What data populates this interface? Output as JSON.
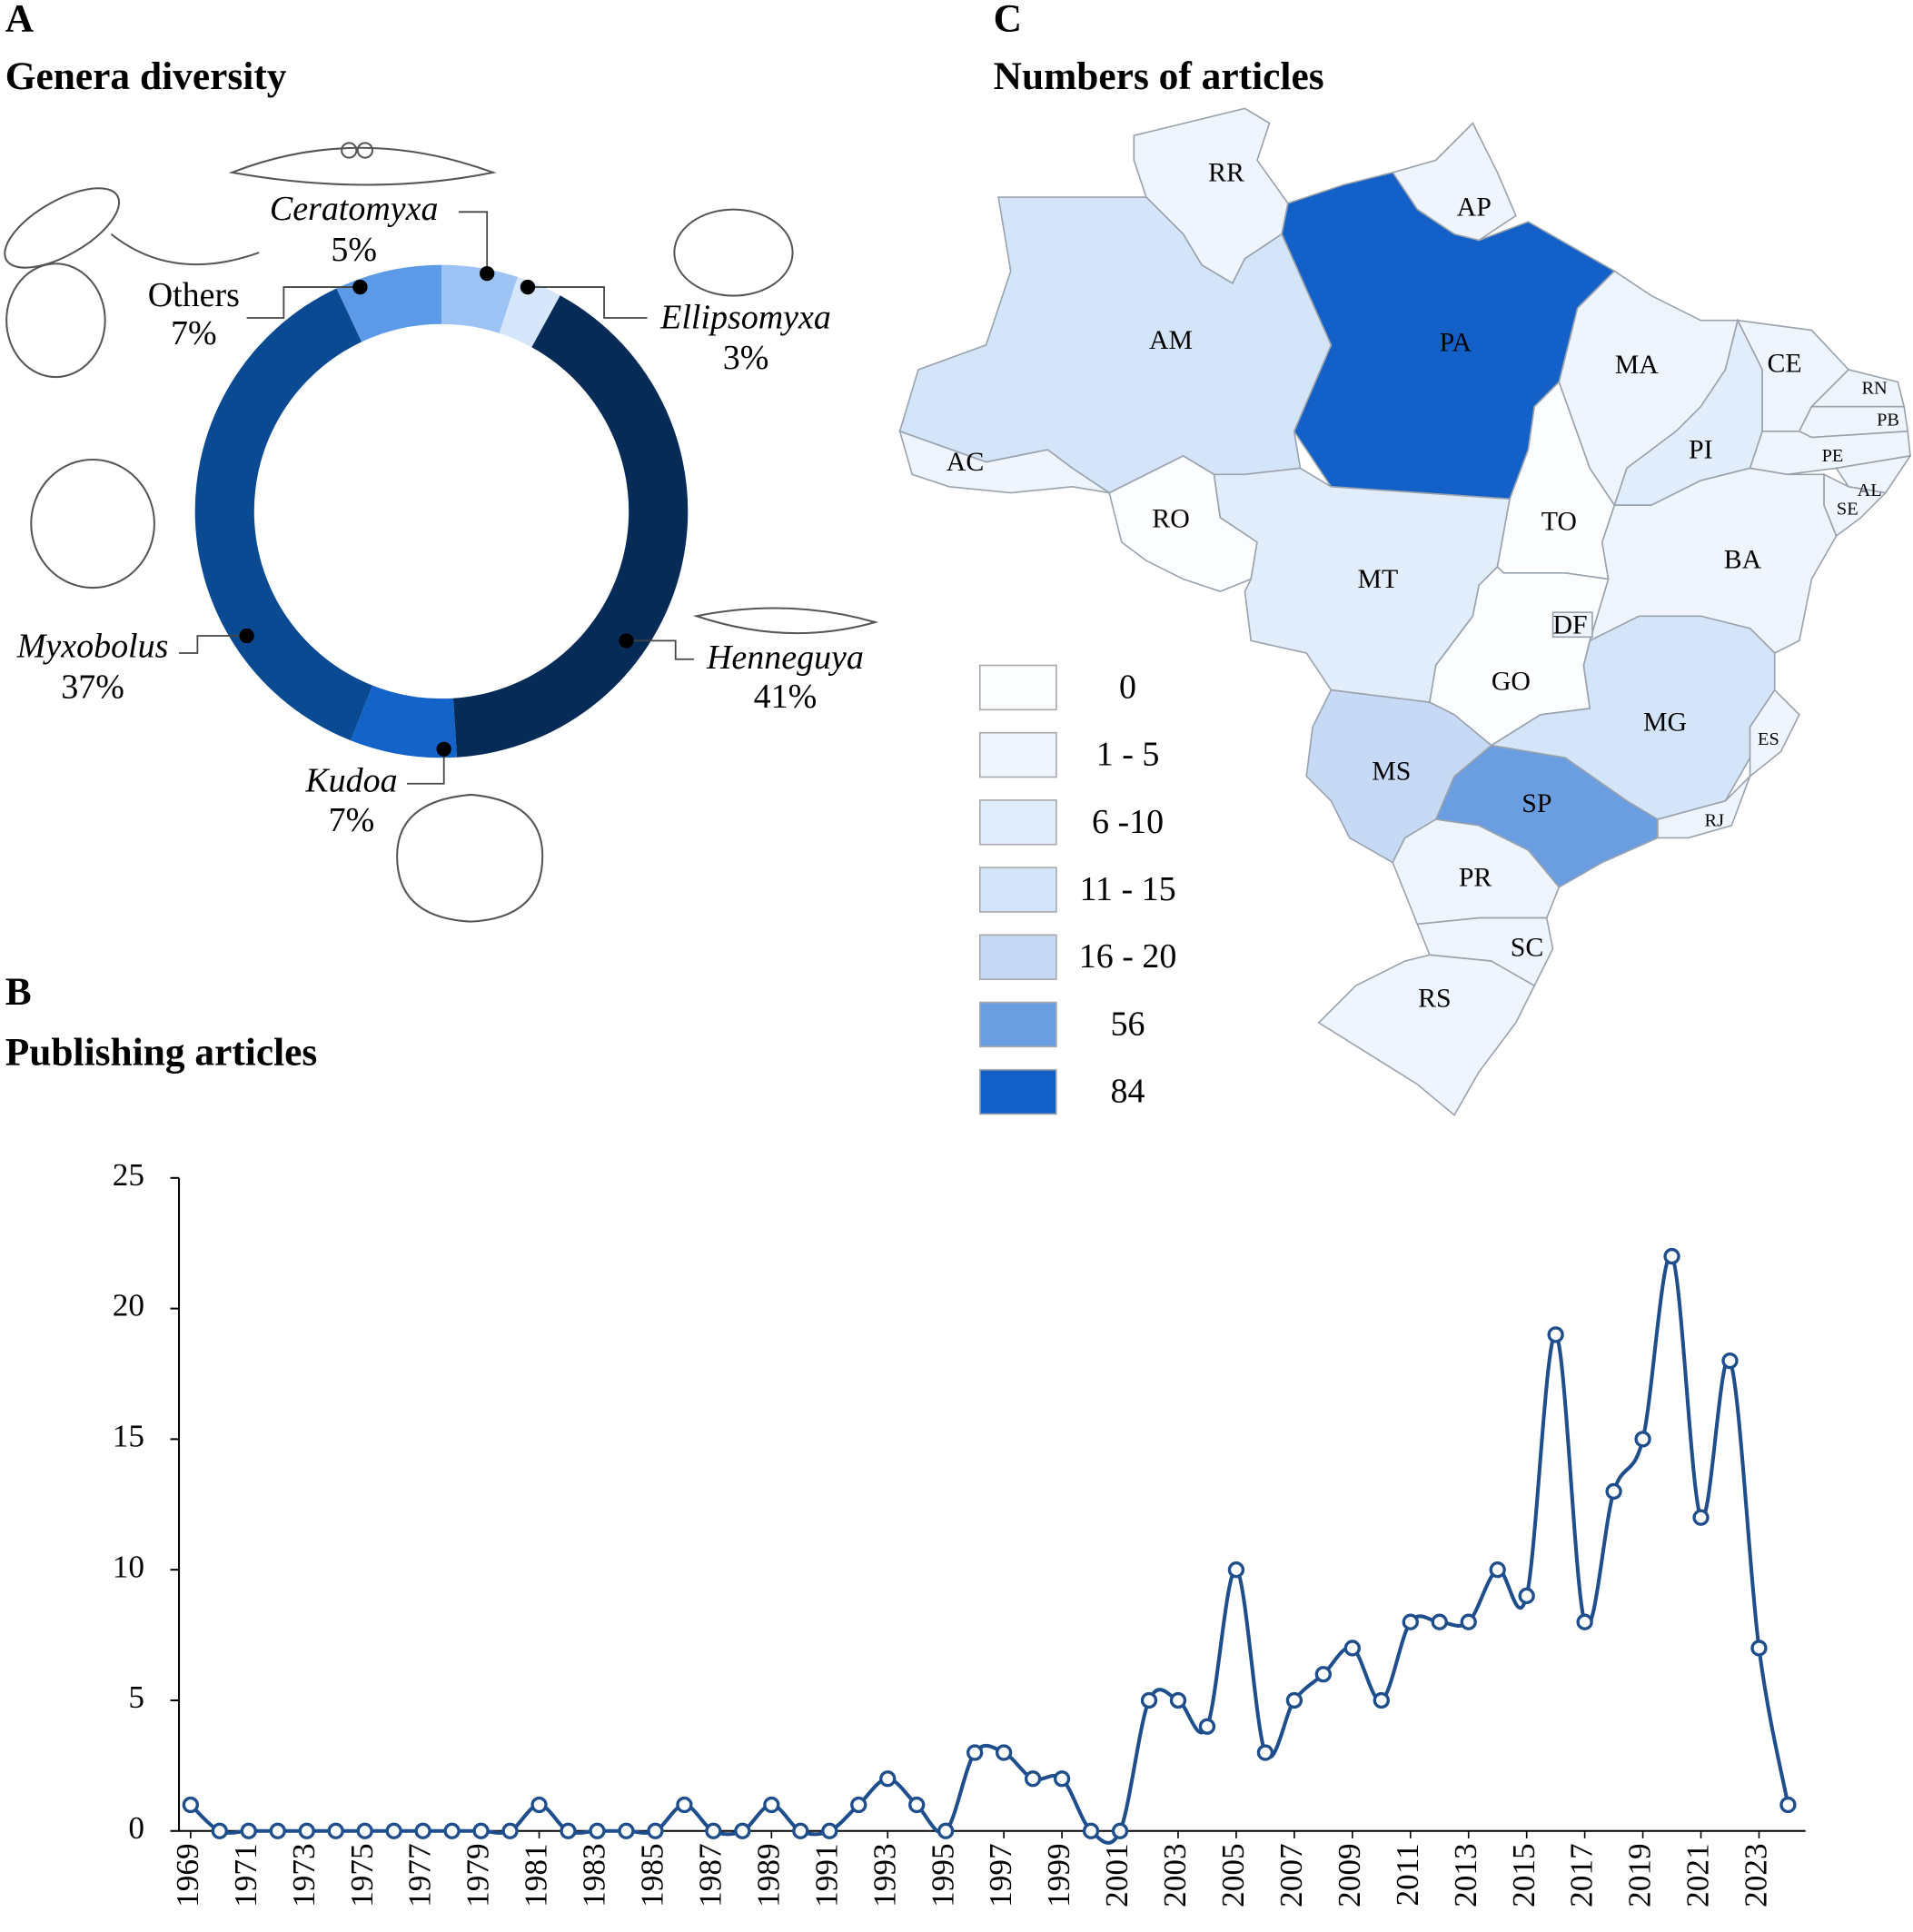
{
  "chart_data": [
    {
      "type": "donut",
      "panel": "A",
      "title": "Genera diversity",
      "categories": [
        "Ceratomyxa",
        "Ellipsomyxa",
        "Henneguya",
        "Kudoa",
        "Myxobolus",
        "Others"
      ],
      "values": [
        5,
        3,
        41,
        7,
        37,
        7
      ],
      "value_labels": [
        "5%",
        "3%",
        "41%",
        "7%",
        "37%",
        "7%"
      ],
      "colors": [
        "#9dc3f5",
        "#d6e6fb",
        "#062b57",
        "#1363c9",
        "#0a4a93",
        "#5c9ae8"
      ]
    },
    {
      "type": "line",
      "panel": "B",
      "title": "Publishing articles",
      "x": [
        1969,
        1970,
        1971,
        1972,
        1973,
        1974,
        1975,
        1976,
        1977,
        1978,
        1979,
        1980,
        1981,
        1982,
        1983,
        1984,
        1985,
        1986,
        1987,
        1988,
        1989,
        1990,
        1991,
        1992,
        1993,
        1994,
        1995,
        1996,
        1997,
        1998,
        1999,
        2000,
        2001,
        2002,
        2003,
        2004,
        2005,
        2006,
        2007,
        2008,
        2009,
        2010,
        2011,
        2012,
        2013,
        2014,
        2015,
        2016,
        2017,
        2018,
        2019,
        2020,
        2021,
        2022,
        2023,
        2024
      ],
      "series": [
        {
          "color": "#1f4e8c",
          "values": [
            1,
            0,
            0,
            0,
            0,
            0,
            0,
            0,
            0,
            0,
            0,
            0,
            1,
            0,
            0,
            0,
            0,
            1,
            0,
            0,
            1,
            0,
            0,
            1,
            2,
            1,
            0,
            3,
            3,
            2,
            2,
            0,
            0,
            5,
            5,
            4,
            10,
            3,
            5,
            6,
            7,
            5,
            8,
            8,
            8,
            10,
            9,
            19,
            8,
            13,
            15,
            22,
            12,
            18,
            7,
            1
          ]
        }
      ],
      "xlim": [
        1968.6,
        2024.6
      ],
      "xticks": [
        1969,
        1971,
        1973,
        1975,
        1977,
        1979,
        1981,
        1983,
        1985,
        1987,
        1989,
        1991,
        1993,
        1995,
        1997,
        1999,
        2001,
        2003,
        2005,
        2007,
        2009,
        2011,
        2013,
        2015,
        2017,
        2019,
        2021,
        2023
      ],
      "ylim": [
        0,
        25
      ],
      "yticks": [
        0,
        5,
        10,
        15,
        20,
        25
      ]
    }
  ],
  "map": {
    "panel": "C",
    "title": "Numbers of articles",
    "legend": [
      {
        "label": "0",
        "color": "#fbfdff"
      },
      {
        "label": "1 - 5",
        "color": "#eef5fd"
      },
      {
        "label": "6 -10",
        "color": "#e2edfb"
      },
      {
        "label": "11 - 15",
        "color": "#d5e5f9"
      },
      {
        "label": "16 - 20",
        "color": "#c6daf6"
      },
      {
        "label": "56",
        "color": "#6b9de1"
      },
      {
        "label": "84",
        "color": "#1361c8"
      }
    ],
    "states": [
      {
        "label": "RR",
        "color": "#eef5fd"
      },
      {
        "label": "AP",
        "color": "#eef5fd"
      },
      {
        "label": "PA",
        "color": "#1361c8"
      },
      {
        "label": "AM",
        "color": "#d5e5f9"
      },
      {
        "label": "AC",
        "color": "#eef5fd"
      },
      {
        "label": "RO",
        "color": "#fbfdff"
      },
      {
        "label": "MT",
        "color": "#e2edfb"
      },
      {
        "label": "TO",
        "color": "#fbfdff"
      },
      {
        "label": "MA",
        "color": "#eef5fd"
      },
      {
        "label": "PI",
        "color": "#e2edfb"
      },
      {
        "label": "CE",
        "color": "#eef5fd"
      },
      {
        "label": "RN",
        "color": "#eef5fd"
      },
      {
        "label": "PB",
        "color": "#eef5fd"
      },
      {
        "label": "PE",
        "color": "#eef5fd"
      },
      {
        "label": "AL",
        "color": "#eef5fd"
      },
      {
        "label": "SE",
        "color": "#eef5fd"
      },
      {
        "label": "BA",
        "color": "#eef5fd"
      },
      {
        "label": "GO",
        "color": "#fbfdff"
      },
      {
        "label": "DF",
        "color": "#eef5fd"
      },
      {
        "label": "MG",
        "color": "#d5e5f9"
      },
      {
        "label": "ES",
        "color": "#eef5fd"
      },
      {
        "label": "RJ",
        "color": "#eef5fd"
      },
      {
        "label": "SP",
        "color": "#6b9de1"
      },
      {
        "label": "MS",
        "color": "#c6daf6"
      },
      {
        "label": "PR",
        "color": "#eef5fd"
      },
      {
        "label": "SC",
        "color": "#eef5fd"
      },
      {
        "label": "RS",
        "color": "#eef5fd"
      }
    ]
  }
}
